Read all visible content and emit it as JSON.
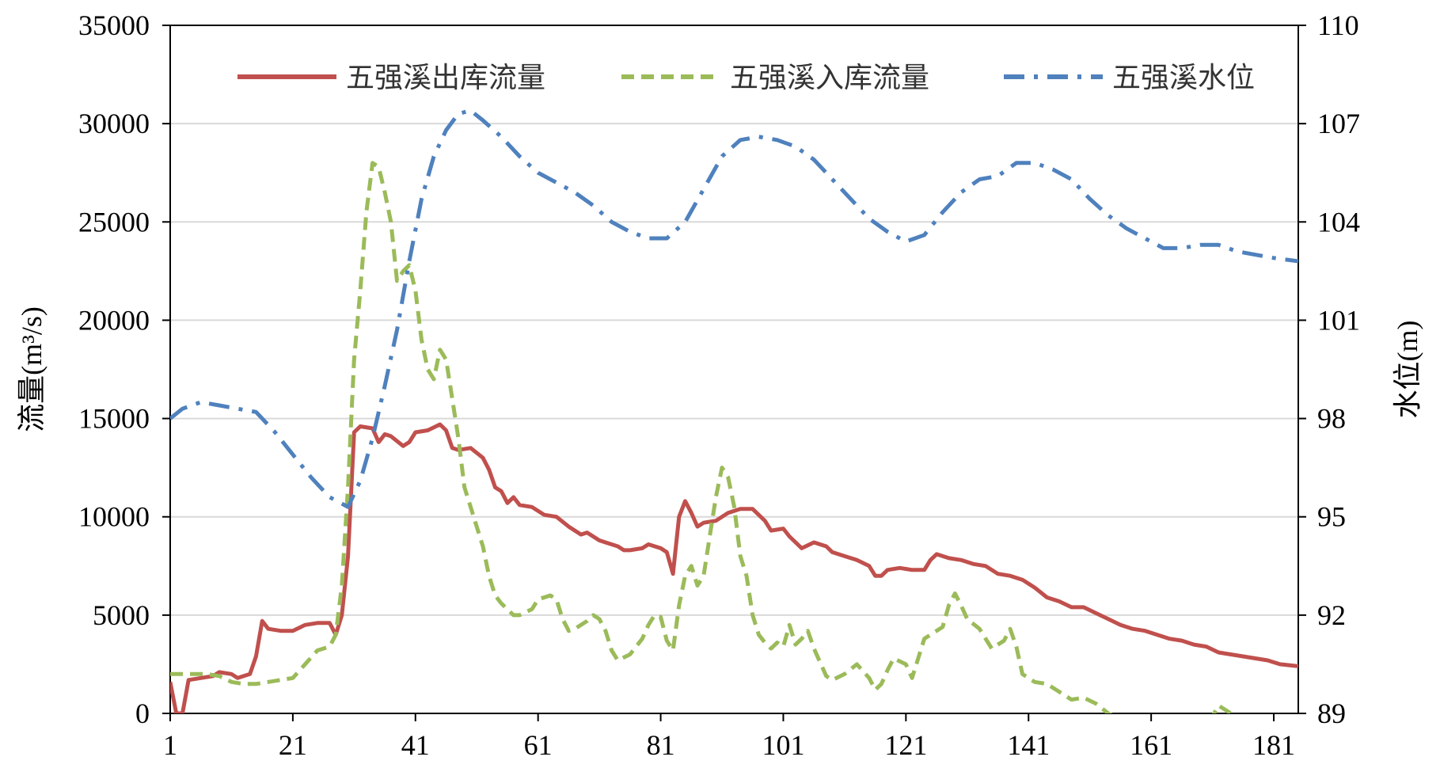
{
  "chart_data": {
    "type": "line",
    "xlabel": "",
    "ylabel": "流量(m³/s)",
    "y2label": "水位(m)",
    "xlim": [
      1,
      185
    ],
    "ylim": [
      0,
      35000
    ],
    "y2lim": [
      89,
      110
    ],
    "x_ticks": [
      "1",
      "21",
      "41",
      "61",
      "81",
      "101",
      "121",
      "141",
      "161",
      "181"
    ],
    "y_ticks": [
      "0",
      "5000",
      "10000",
      "15000",
      "20000",
      "25000",
      "30000",
      "35000"
    ],
    "y2_ticks": [
      "89",
      "92",
      "95",
      "98",
      "101",
      "104",
      "107",
      "110"
    ],
    "grid": true,
    "legend_position": "top",
    "series": [
      {
        "name": "五强溪出库流量",
        "axis": "left",
        "color": "#c0504d",
        "style": "solid",
        "points": [
          [
            1,
            1600
          ],
          [
            2,
            0
          ],
          [
            3,
            0
          ],
          [
            4,
            1700
          ],
          [
            6,
            1800
          ],
          [
            8,
            1900
          ],
          [
            9,
            2100
          ],
          [
            11,
            2000
          ],
          [
            12,
            1800
          ],
          [
            14,
            2000
          ],
          [
            15,
            2900
          ],
          [
            16,
            4700
          ],
          [
            17,
            4300
          ],
          [
            19,
            4200
          ],
          [
            21,
            4200
          ],
          [
            23,
            4500
          ],
          [
            25,
            4600
          ],
          [
            27,
            4600
          ],
          [
            28,
            4000
          ],
          [
            29,
            5000
          ],
          [
            30,
            8000
          ],
          [
            31,
            14300
          ],
          [
            32,
            14600
          ],
          [
            34,
            14500
          ],
          [
            35,
            13800
          ],
          [
            36,
            14200
          ],
          [
            37,
            14100
          ],
          [
            39,
            13600
          ],
          [
            40,
            13800
          ],
          [
            41,
            14300
          ],
          [
            43,
            14400
          ],
          [
            45,
            14700
          ],
          [
            46,
            14400
          ],
          [
            47,
            13500
          ],
          [
            48,
            13400
          ],
          [
            50,
            13500
          ],
          [
            52,
            13000
          ],
          [
            53,
            12400
          ],
          [
            54,
            11500
          ],
          [
            55,
            11300
          ],
          [
            56,
            10700
          ],
          [
            57,
            11000
          ],
          [
            58,
            10600
          ],
          [
            60,
            10500
          ],
          [
            61,
            10300
          ],
          [
            62,
            10100
          ],
          [
            64,
            10000
          ],
          [
            66,
            9500
          ],
          [
            68,
            9100
          ],
          [
            69,
            9200
          ],
          [
            71,
            8800
          ],
          [
            73,
            8600
          ],
          [
            74,
            8500
          ],
          [
            75,
            8300
          ],
          [
            76,
            8300
          ],
          [
            78,
            8400
          ],
          [
            79,
            8600
          ],
          [
            81,
            8400
          ],
          [
            82,
            8200
          ],
          [
            83,
            7100
          ],
          [
            84,
            10000
          ],
          [
            85,
            10800
          ],
          [
            86,
            10200
          ],
          [
            87,
            9500
          ],
          [
            88,
            9700
          ],
          [
            90,
            9800
          ],
          [
            92,
            10200
          ],
          [
            94,
            10400
          ],
          [
            96,
            10400
          ],
          [
            98,
            9800
          ],
          [
            99,
            9300
          ],
          [
            101,
            9400
          ],
          [
            102,
            9000
          ],
          [
            104,
            8400
          ],
          [
            106,
            8700
          ],
          [
            108,
            8500
          ],
          [
            109,
            8200
          ],
          [
            111,
            8000
          ],
          [
            113,
            7800
          ],
          [
            115,
            7500
          ],
          [
            116,
            7000
          ],
          [
            117,
            7000
          ],
          [
            118,
            7300
          ],
          [
            120,
            7400
          ],
          [
            122,
            7300
          ],
          [
            124,
            7300
          ],
          [
            125,
            7800
          ],
          [
            126,
            8100
          ],
          [
            128,
            7900
          ],
          [
            130,
            7800
          ],
          [
            132,
            7600
          ],
          [
            134,
            7500
          ],
          [
            136,
            7100
          ],
          [
            138,
            7000
          ],
          [
            140,
            6800
          ],
          [
            142,
            6400
          ],
          [
            144,
            5900
          ],
          [
            146,
            5700
          ],
          [
            148,
            5400
          ],
          [
            150,
            5400
          ],
          [
            152,
            5100
          ],
          [
            154,
            4800
          ],
          [
            156,
            4500
          ],
          [
            158,
            4300
          ],
          [
            160,
            4200
          ],
          [
            162,
            4000
          ],
          [
            164,
            3800
          ],
          [
            166,
            3700
          ],
          [
            168,
            3500
          ],
          [
            170,
            3400
          ],
          [
            172,
            3100
          ],
          [
            174,
            3000
          ],
          [
            176,
            2900
          ],
          [
            178,
            2800
          ],
          [
            180,
            2700
          ],
          [
            182,
            2500
          ],
          [
            185,
            2400
          ]
        ]
      },
      {
        "name": "五强溪入库流量",
        "axis": "left",
        "color": "#9bbb59",
        "style": "dash",
        "points": [
          [
            1,
            2000
          ],
          [
            4,
            2000
          ],
          [
            7,
            2000
          ],
          [
            9,
            1900
          ],
          [
            11,
            1600
          ],
          [
            13,
            1500
          ],
          [
            15,
            1500
          ],
          [
            17,
            1600
          ],
          [
            19,
            1700
          ],
          [
            21,
            1800
          ],
          [
            23,
            2500
          ],
          [
            25,
            3200
          ],
          [
            27,
            3400
          ],
          [
            28,
            4000
          ],
          [
            29,
            6500
          ],
          [
            30,
            11500
          ],
          [
            31,
            18000
          ],
          [
            32,
            21500
          ],
          [
            33,
            25500
          ],
          [
            34,
            28000
          ],
          [
            35,
            27800
          ],
          [
            36,
            26500
          ],
          [
            37,
            25000
          ],
          [
            38,
            22000
          ],
          [
            39,
            22500
          ],
          [
            40,
            22800
          ],
          [
            41,
            21500
          ],
          [
            42,
            19000
          ],
          [
            43,
            17500
          ],
          [
            44,
            17000
          ],
          [
            45,
            18500
          ],
          [
            46,
            18000
          ],
          [
            47,
            16000
          ],
          [
            48,
            14000
          ],
          [
            49,
            11500
          ],
          [
            50,
            10500
          ],
          [
            51,
            9500
          ],
          [
            52,
            8500
          ],
          [
            53,
            7000
          ],
          [
            54,
            6000
          ],
          [
            55,
            5600
          ],
          [
            57,
            5000
          ],
          [
            58,
            5000
          ],
          [
            60,
            5300
          ],
          [
            61,
            5800
          ],
          [
            63,
            6000
          ],
          [
            64,
            5800
          ],
          [
            65,
            4800
          ],
          [
            66,
            4200
          ],
          [
            67,
            4300
          ],
          [
            69,
            4700
          ],
          [
            70,
            5000
          ],
          [
            71,
            4800
          ],
          [
            72,
            4200
          ],
          [
            73,
            3200
          ],
          [
            74,
            2700
          ],
          [
            76,
            3000
          ],
          [
            78,
            3800
          ],
          [
            79,
            4500
          ],
          [
            80,
            5000
          ],
          [
            81,
            4900
          ],
          [
            82,
            3700
          ],
          [
            83,
            3200
          ],
          [
            84,
            5500
          ],
          [
            85,
            7000
          ],
          [
            86,
            7500
          ],
          [
            87,
            6500
          ],
          [
            88,
            7000
          ],
          [
            89,
            9000
          ],
          [
            90,
            11000
          ],
          [
            91,
            12500
          ],
          [
            92,
            12000
          ],
          [
            93,
            10500
          ],
          [
            94,
            8000
          ],
          [
            95,
            7000
          ],
          [
            96,
            5000
          ],
          [
            97,
            4000
          ],
          [
            98,
            3600
          ],
          [
            99,
            3300
          ],
          [
            100,
            3600
          ],
          [
            101,
            3400
          ],
          [
            102,
            4500
          ],
          [
            103,
            3500
          ],
          [
            104,
            3800
          ],
          [
            105,
            4200
          ],
          [
            106,
            3300
          ],
          [
            107,
            2600
          ],
          [
            108,
            1900
          ],
          [
            109,
            1700
          ],
          [
            111,
            2000
          ],
          [
            113,
            2500
          ],
          [
            115,
            1800
          ],
          [
            116,
            1200
          ],
          [
            117,
            1500
          ],
          [
            118,
            2200
          ],
          [
            119,
            2800
          ],
          [
            121,
            2500
          ],
          [
            122,
            1800
          ],
          [
            124,
            3800
          ],
          [
            125,
            4000
          ],
          [
            127,
            4400
          ],
          [
            128,
            5500
          ],
          [
            129,
            6100
          ],
          [
            130,
            5500
          ],
          [
            131,
            4800
          ],
          [
            133,
            4300
          ],
          [
            135,
            3300
          ],
          [
            137,
            3700
          ],
          [
            138,
            4300
          ],
          [
            139,
            3400
          ],
          [
            140,
            2000
          ],
          [
            142,
            1600
          ],
          [
            144,
            1500
          ],
          [
            146,
            1100
          ],
          [
            148,
            700
          ],
          [
            150,
            800
          ],
          [
            152,
            500
          ],
          [
            154,
            0
          ],
          [
            156,
            -300
          ],
          [
            158,
            -300
          ],
          [
            160,
            -100
          ],
          [
            162,
            -400
          ],
          [
            164,
            -200
          ],
          [
            166,
            -600
          ],
          [
            168,
            -500
          ],
          [
            170,
            -700
          ],
          [
            172,
            400
          ],
          [
            174,
            0
          ],
          [
            176,
            -900
          ],
          [
            178,
            -1300
          ],
          [
            180,
            -1300
          ],
          [
            182,
            -1200
          ],
          [
            185,
            -1600
          ]
        ]
      },
      {
        "name": "五强溪水位",
        "axis": "right",
        "color": "#4f81bd",
        "style": "dashdot",
        "points": [
          [
            1,
            98
          ],
          [
            3,
            98.3
          ],
          [
            6,
            98.5
          ],
          [
            9,
            98.4
          ],
          [
            12,
            98.3
          ],
          [
            15,
            98.2
          ],
          [
            18,
            97.6
          ],
          [
            21,
            96.9
          ],
          [
            24,
            96.2
          ],
          [
            27,
            95.6
          ],
          [
            30,
            95.3
          ],
          [
            32,
            96.1
          ],
          [
            34,
            97.4
          ],
          [
            36,
            99.0
          ],
          [
            38,
            100.7
          ],
          [
            40,
            102.8
          ],
          [
            42,
            104.7
          ],
          [
            44,
            106.0
          ],
          [
            46,
            106.8
          ],
          [
            48,
            107.3
          ],
          [
            50,
            107.4
          ],
          [
            52,
            107.1
          ],
          [
            55,
            106.6
          ],
          [
            58,
            106.0
          ],
          [
            61,
            105.5
          ],
          [
            64,
            105.2
          ],
          [
            67,
            104.9
          ],
          [
            70,
            104.5
          ],
          [
            73,
            104.0
          ],
          [
            76,
            103.7
          ],
          [
            79,
            103.5
          ],
          [
            82,
            103.5
          ],
          [
            85,
            104.0
          ],
          [
            88,
            105.0
          ],
          [
            91,
            106.0
          ],
          [
            94,
            106.5
          ],
          [
            97,
            106.6
          ],
          [
            100,
            106.5
          ],
          [
            103,
            106.3
          ],
          [
            106,
            105.9
          ],
          [
            109,
            105.3
          ],
          [
            112,
            104.7
          ],
          [
            115,
            104.1
          ],
          [
            118,
            103.7
          ],
          [
            121,
            103.4
          ],
          [
            124,
            103.6
          ],
          [
            127,
            104.3
          ],
          [
            130,
            104.9
          ],
          [
            133,
            105.3
          ],
          [
            136,
            105.4
          ],
          [
            139,
            105.8
          ],
          [
            142,
            105.8
          ],
          [
            145,
            105.6
          ],
          [
            148,
            105.3
          ],
          [
            151,
            104.7
          ],
          [
            154,
            104.2
          ],
          [
            157,
            103.8
          ],
          [
            160,
            103.5
          ],
          [
            163,
            103.2
          ],
          [
            166,
            103.2
          ],
          [
            169,
            103.3
          ],
          [
            172,
            103.3
          ],
          [
            175,
            103.1
          ],
          [
            178,
            103.0
          ],
          [
            181,
            102.9
          ],
          [
            185,
            102.8
          ]
        ]
      }
    ]
  }
}
